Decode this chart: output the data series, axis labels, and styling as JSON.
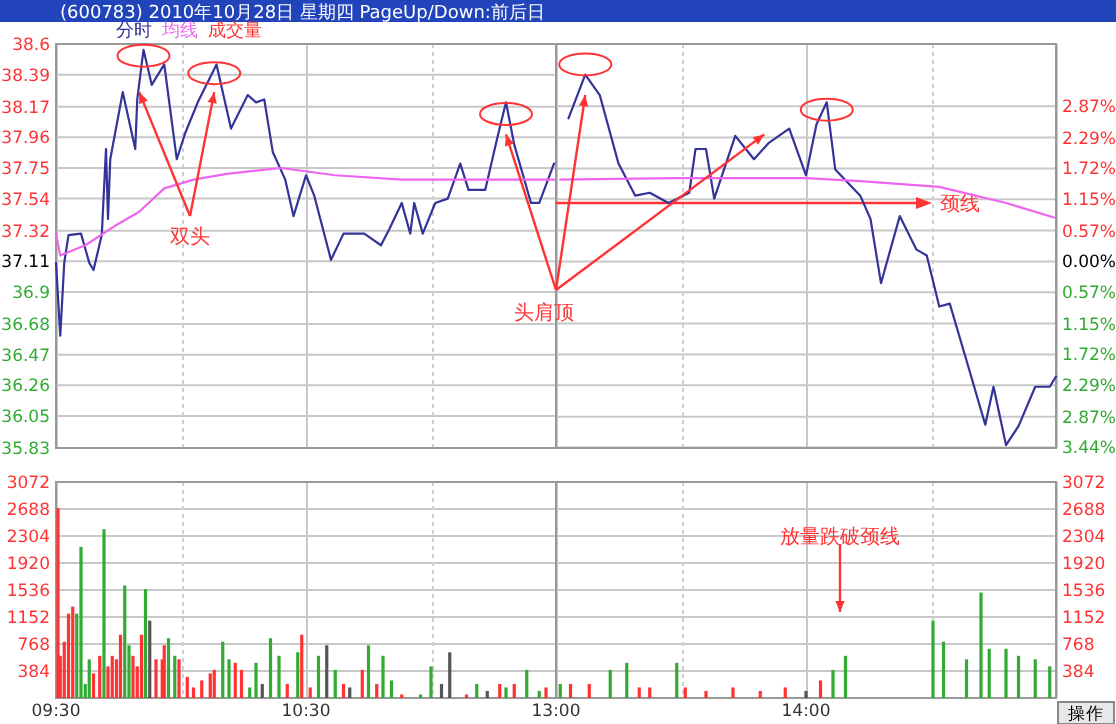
{
  "chart_data": [
    {
      "type": "line",
      "title": "(600783) 2010年10月28日 星期四 PageUp/Down:前后日",
      "legend": "top left",
      "grid": true,
      "tick_labels": "y",
      "xlim": [
        9.5,
        11.5
      ],
      "xticks": [
        {
          "value": 9.5,
          "label": null
        },
        {
          "value": 10,
          "label": null
        },
        {
          "value": 10.5,
          "label": null
        },
        {
          "value": 11,
          "label": null
        },
        {
          "value": 11.5,
          "label": null
        }
      ],
      "ylim": [
        35.83,
        38.6
      ],
      "yticks": [
        38.6,
        38.39,
        38.17,
        37.96,
        37.75,
        37.54,
        37.32,
        37.11,
        36.9,
        36.68,
        36.47,
        36.26,
        36.05,
        35.83
      ],
      "series": [
        {
          "name": "分时",
          "color": "#333399",
          "x": [
            9.5,
            9.517,
            9.533,
            9.55,
            9.6,
            9.633,
            9.65,
            9.683,
            9.7,
            9.708,
            9.717,
            9.767,
            9.817,
            9.825,
            9.85,
            9.883,
            9.933,
            9.983,
            10.017,
            10.067,
            10.142,
            10.2,
            10.267,
            10.3,
            10.333,
            10.367,
            10.417,
            10.45,
            10.5,
            10.533,
            10.6,
            10.65,
            10.733,
            10.8,
            10.833,
            10.883,
            10.917,
            10.933,
            10.967,
            11.017,
            11.067,
            11.117,
            11.15,
            11.217,
            11.267,
            11.3,
            11.333,
            11.4,
            11.433,
            11.492
          ],
          "values": [
            37.1,
            36.6,
            37.1,
            37.29,
            37.3,
            37.1,
            37.05,
            37.29,
            37.88,
            37.4,
            37.81,
            38.27,
            37.88,
            38.22,
            38.56,
            38.32,
            38.46,
            37.81,
            37.99,
            38.2,
            38.46,
            38.02,
            38.25,
            38.2,
            38.22,
            37.86,
            37.67,
            37.42,
            37.7,
            37.56,
            37.12,
            37.3,
            37.3,
            37.22,
            37.33,
            37.51,
            37.3,
            37.51,
            37.3,
            37.51,
            37.54,
            37.78,
            37.6,
            37.6,
            37.97,
            38.2,
            37.91,
            37.51,
            37.51,
            37.78
          ]
        },
        {
          "name": "均线",
          "color": "#ee66ee",
          "x": [
            9.5,
            9.517,
            9.617,
            9.733,
            9.833,
            9.933,
            10.05,
            10.183,
            10.4,
            10.617,
            10.883,
            11.133,
            11.5
          ],
          "values": [
            37.3,
            37.15,
            37.22,
            37.35,
            37.45,
            37.61,
            37.67,
            37.71,
            37.75,
            37.7,
            37.67,
            37.67,
            37.67
          ]
        }
      ],
      "annotations": [
        {
          "text": "双头",
          "x": 9.833,
          "y": 38.27
        }
      ]
    },
    {
      "type": "line",
      "grid": true,
      "tick_labels": "y",
      "xlim": [
        13,
        15
      ],
      "xticks": [
        {
          "value": 13,
          "label": null
        },
        {
          "value": 13.5,
          "label": null
        },
        {
          "value": 14,
          "label": null
        },
        {
          "value": 14.5,
          "label": null
        },
        {
          "value": 15,
          "label": null
        }
      ],
      "ylim": [
        35.83,
        38.6
      ],
      "y2lim": [
        -3.45,
        4.02
      ],
      "y2ticks": [
        {
          "value": 2.87,
          "label": "2.87%"
        },
        {
          "value": 2.29,
          "label": "2.29%"
        },
        {
          "value": 1.72,
          "label": "1.72%"
        },
        {
          "value": 1.15,
          "label": "1.15%"
        },
        {
          "value": 0.57,
          "label": "0.57%"
        },
        {
          "value": 0,
          "label": "0.00%"
        },
        {
          "value": -0.57,
          "label": "0.57%"
        },
        {
          "value": -1.15,
          "label": "1.15%"
        },
        {
          "value": -1.72,
          "label": "1.72%"
        },
        {
          "value": -2.29,
          "label": "2.29%"
        },
        {
          "value": -2.87,
          "label": "2.87%"
        },
        {
          "value": -3.44,
          "label": "3.44%"
        }
      ],
      "series": [
        {
          "color": "#333399",
          "x": [
            13.05,
            13.117,
            13.175,
            13.25,
            13.317,
            13.375,
            13.45,
            13.533,
            13.558,
            13.6,
            13.633,
            13.717,
            13.792,
            13.85,
            13.933,
            14,
            14.042,
            14.083,
            14.117,
            14.217,
            14.258,
            14.3,
            14.375,
            14.442,
            14.483,
            14.533,
            14.575,
            14.642,
            14.717,
            14.75,
            14.8,
            14.85,
            14.917,
            14.975,
            15
          ],
          "values": [
            38.09,
            38.39,
            38.25,
            37.78,
            37.56,
            37.58,
            37.51,
            37.58,
            37.88,
            37.88,
            37.54,
            37.97,
            37.81,
            37.92,
            38.02,
            37.7,
            38.05,
            38.2,
            37.74,
            37.56,
            37.4,
            36.96,
            37.42,
            37.19,
            37.15,
            36.8,
            36.82,
            36.43,
            35.99,
            36.25,
            35.85,
            35.98,
            36.25,
            36.25,
            36.32
          ]
        },
        {
          "color": "#ee66ee",
          "x": [
            13.017,
            13.467,
            14,
            14.217,
            14.533,
            14.8,
            14.992
          ],
          "values": [
            37.67,
            37.68,
            37.68,
            37.66,
            37.62,
            37.51,
            37.41
          ]
        }
      ],
      "ref_lines": [
        {
          "axis": "y",
          "value": 37.51,
          "label": "颈线",
          "color": "#ff3333"
        }
      ],
      "annotations": [
        {
          "text": "头肩顶",
          "x": 13.117,
          "y": 38.25
        }
      ]
    },
    {
      "type": "bar",
      "grid": true,
      "xlim": [
        9.5,
        11.5
      ],
      "xticks": [
        {
          "value": 9.5,
          "label": "09:30"
        },
        {
          "value": 10,
          "label": null
        },
        {
          "value": 10.5,
          "label": "10:30"
        },
        {
          "value": 11,
          "label": null
        },
        {
          "value": 11.5,
          "label": null
        }
      ],
      "ylim": [
        0,
        3072
      ],
      "yticks": [
        384,
        768,
        1152,
        1536,
        1920,
        2304,
        2688,
        3072
      ],
      "series": [
        {
          "name": "成交量",
          "x": [
            9.508,
            9.517,
            9.533,
            9.55,
            9.567,
            9.583,
            9.6,
            9.617,
            9.633,
            9.65,
            9.675,
            9.692,
            9.708,
            9.725,
            9.742,
            9.758,
            9.775,
            9.792,
            9.808,
            9.825,
            9.842,
            9.858,
            9.875,
            9.9,
            9.925,
            9.933,
            9.95,
            9.975,
            9.992,
            10.025,
            10.05,
            10.083,
            10.117,
            10.133,
            10.167,
            10.192,
            10.217,
            10.242,
            10.275,
            10.3,
            10.325,
            10.358,
            10.392,
            10.425,
            10.467,
            10.483,
            10.517,
            10.55,
            10.583,
            10.617,
            10.65,
            10.675,
            10.725,
            10.75,
            10.783,
            10.808,
            10.842,
            10.883,
            10.958,
            11,
            11.042,
            11.075,
            11.142,
            11.183,
            11.225,
            11.275,
            11.3,
            11.333,
            11.383,
            11.433,
            11.46
          ],
          "values": [
            2700,
            600,
            800,
            1200,
            1300,
            1200,
            2150,
            200,
            550,
            350,
            600,
            2400,
            450,
            600,
            550,
            900,
            1600,
            750,
            600,
            450,
            900,
            1550,
            1100,
            550,
            550,
            750,
            850,
            600,
            550,
            300,
            150,
            250,
            350,
            400,
            800,
            550,
            500,
            400,
            150,
            500,
            200,
            850,
            600,
            200,
            650,
            900,
            150,
            600,
            750,
            400,
            200,
            150,
            400,
            750,
            200,
            600,
            250,
            50,
            50,
            450,
            200,
            650,
            50,
            200,
            100,
            200,
            150,
            200,
            400,
            100,
            150
          ],
          "colors": [
            "#ff3333",
            "#ff3333",
            "#ff3333",
            "#ff3333",
            "#ff3333",
            "#33aa33",
            "#33aa33",
            "#33aa33",
            "#33aa33",
            "#ff3333",
            "#ff3333",
            "#33aa33",
            "#ff3333",
            "#ff3333",
            "#ff3333",
            "#ff3333",
            "#33aa33",
            "#33aa33",
            "#ff3333",
            "#ff3333",
            "#ff3333",
            "#33aa33",
            "#555555",
            "#ff3333",
            "#ff3333",
            "#ff3333",
            "#33aa33",
            "#33aa33",
            "#ff3333",
            "#ff3333",
            "#ff3333",
            "#ff3333",
            "#ff3333",
            "#ff3333",
            "#33aa33",
            "#33aa33",
            "#ff3333",
            "#ff3333",
            "#33aa33",
            "#33aa33",
            "#555555",
            "#33aa33",
            "#33aa33",
            "#ff3333",
            "#33aa33",
            "#ff3333",
            "#ff3333",
            "#33aa33",
            "#555555",
            "#33aa33",
            "#ff3333",
            "#555555",
            "#ff3333",
            "#33aa33",
            "#ff3333",
            "#33aa33",
            "#33aa33",
            "#ff3333",
            "#33aa33",
            "#33aa33",
            "#555555",
            "#555555",
            "#ff3333",
            "#33aa33",
            "#555555",
            "#ff3333",
            "#33aa33",
            "#ff3333",
            "#33aa33",
            "#33aa33",
            "#ff3333"
          ]
        }
      ]
    },
    {
      "type": "bar",
      "grid": true,
      "xlim": [
        13,
        15
      ],
      "xticks": [
        {
          "value": 13,
          "label": "13:00"
        },
        {
          "value": 13.5,
          "label": null
        },
        {
          "value": 14,
          "label": "14:00"
        },
        {
          "value": 14.5,
          "label": null
        },
        {
          "value": 15,
          "label": null
        }
      ],
      "ylim": [
        0,
        3072
      ],
      "yticks": [
        384,
        768,
        1152,
        1536,
        1920,
        2304,
        2688,
        3072
      ],
      "series": [
        {
          "x": [
            13.017,
            13.058,
            13.133,
            13.217,
            13.283,
            13.333,
            13.375,
            13.483,
            13.517,
            13.6,
            13.708,
            13.817,
            13.917,
            14,
            14.058,
            14.108,
            14.158,
            14.508,
            14.55,
            14.642,
            14.7,
            14.733,
            14.8,
            14.85,
            14.917,
            14.975
          ],
          "values": [
            200,
            200,
            200,
            400,
            500,
            150,
            150,
            500,
            150,
            100,
            150,
            100,
            150,
            100,
            250,
            400,
            600,
            1100,
            800,
            550,
            1500,
            700,
            700,
            600,
            550,
            450
          ],
          "colors": [
            "#33aa33",
            "#ff3333",
            "#ff3333",
            "#33aa33",
            "#33aa33",
            "#ff3333",
            "#ff3333",
            "#33aa33",
            "#ff3333",
            "#ff3333",
            "#ff3333",
            "#ff3333",
            "#ff3333",
            "#555555",
            "#ff3333",
            "#33aa33",
            "#33aa33",
            "#33aa33",
            "#33aa33",
            "#33aa33",
            "#33aa33",
            "#33aa33",
            "#33aa33",
            "#33aa33",
            "#33aa33",
            "#33aa33"
          ]
        }
      ],
      "annotations": [
        "放量跌破颈线",
        "操作"
      ]
    }
  ]
}
